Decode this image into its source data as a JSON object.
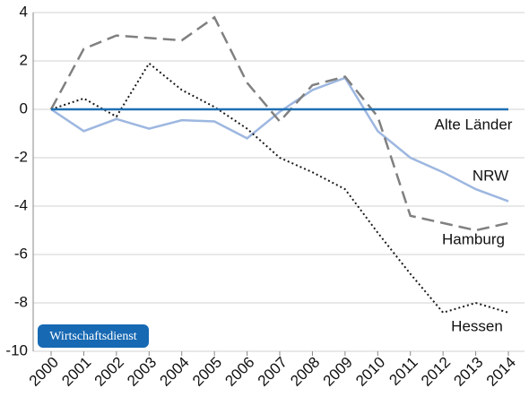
{
  "chart_data": {
    "type": "line",
    "categories": [
      "2000",
      "2001",
      "2002",
      "2003",
      "2004",
      "2005",
      "2006",
      "2007",
      "2008",
      "2009",
      "2010",
      "2011",
      "2012",
      "2013",
      "2014"
    ],
    "series": [
      {
        "name": "Alte Länder",
        "color": "#1f6fb2",
        "style": "solid",
        "values": [
          0,
          0,
          0,
          0,
          0,
          0,
          0,
          0,
          0,
          0,
          0,
          0,
          0,
          0,
          0
        ]
      },
      {
        "name": "NRW",
        "color": "#9db7e0",
        "style": "solid",
        "values": [
          0,
          -0.9,
          -0.4,
          -0.8,
          -0.45,
          -0.5,
          -1.2,
          -0.1,
          0.8,
          1.3,
          -0.9,
          -2.0,
          -2.6,
          -3.3,
          -3.8
        ]
      },
      {
        "name": "Hamburg",
        "color": "#808080",
        "style": "dashed",
        "values": [
          0,
          2.5,
          3.05,
          2.95,
          2.85,
          3.8,
          1.1,
          -0.5,
          1.0,
          1.35,
          -0.3,
          -4.4,
          -4.7,
          -5.0,
          -4.7
        ]
      },
      {
        "name": "Hessen",
        "color": "#1a1a1a",
        "style": "dotted",
        "values": [
          0,
          0.45,
          -0.3,
          1.9,
          0.8,
          0.1,
          -0.8,
          -2.0,
          -2.6,
          -3.3,
          -5.1,
          -6.8,
          -8.4,
          -8.0,
          -8.4
        ]
      }
    ],
    "ylim": [
      -10,
      4
    ],
    "yticks": [
      -10,
      -8,
      -6,
      -4,
      -2,
      0,
      2,
      4
    ],
    "grid": true,
    "badge": "Wirtschaftsdienst"
  }
}
